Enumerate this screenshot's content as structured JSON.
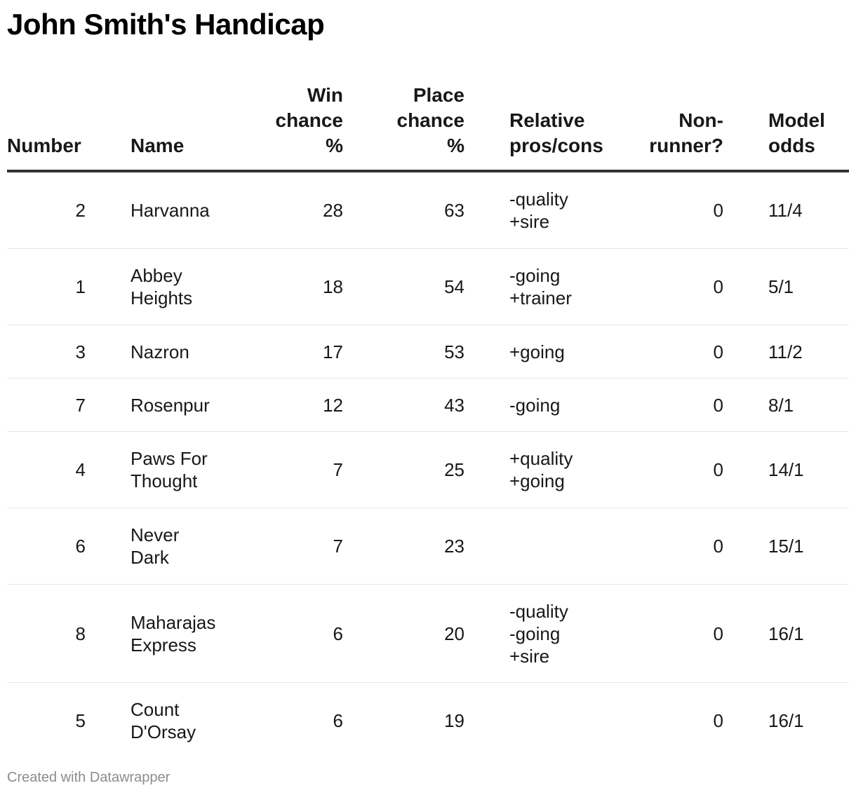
{
  "title": "John Smith's Handicap",
  "footer": "Created with Datawrapper",
  "chart_data": {
    "type": "table",
    "columns": [
      "Number",
      "Name",
      "Win chance %",
      "Place chance %",
      "Relative pros/cons",
      "Non-runner?",
      "Model odds"
    ],
    "header_display": [
      "Number",
      "Name",
      "Win\nchance\n%",
      "Place\nchance\n%",
      "Relative\npros/cons",
      "Non-\nrunner?",
      "Model\nodds"
    ],
    "rows": [
      {
        "number": "2",
        "name": "Harvanna",
        "win": "28",
        "place": "63",
        "pros_cons": "-quality\n+sire",
        "non_runner": "0",
        "odds": "11/4"
      },
      {
        "number": "1",
        "name": "Abbey\nHeights",
        "win": "18",
        "place": "54",
        "pros_cons": "-going\n+trainer",
        "non_runner": "0",
        "odds": "5/1"
      },
      {
        "number": "3",
        "name": "Nazron",
        "win": "17",
        "place": "53",
        "pros_cons": "+going",
        "non_runner": "0",
        "odds": "11/2"
      },
      {
        "number": "7",
        "name": "Rosenpur",
        "win": "12",
        "place": "43",
        "pros_cons": "-going",
        "non_runner": "0",
        "odds": "8/1"
      },
      {
        "number": "4",
        "name": "Paws For\nThought",
        "win": "7",
        "place": "25",
        "pros_cons": "+quality\n+going",
        "non_runner": "0",
        "odds": "14/1"
      },
      {
        "number": "6",
        "name": "Never\nDark",
        "win": "7",
        "place": "23",
        "pros_cons": "",
        "non_runner": "0",
        "odds": "15/1"
      },
      {
        "number": "8",
        "name": "Maharajas\nExpress",
        "win": "6",
        "place": "20",
        "pros_cons": "-quality\n-going\n+sire",
        "non_runner": "0",
        "odds": "16/1"
      },
      {
        "number": "5",
        "name": "Count\nD'Orsay",
        "win": "6",
        "place": "19",
        "pros_cons": "",
        "non_runner": "0",
        "odds": "16/1"
      }
    ]
  }
}
